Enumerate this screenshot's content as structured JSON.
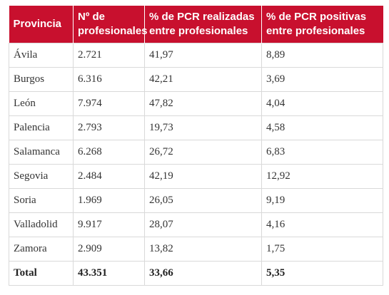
{
  "table": {
    "headers": [
      {
        "line1": "Provincia",
        "line2": ""
      },
      {
        "line1": "Nº de",
        "line2": "profesionales"
      },
      {
        "line1": "% de PCR realizadas",
        "line2": "entre profesionales"
      },
      {
        "line1": "% de PCR positivas",
        "line2": "entre profesionales"
      }
    ],
    "rows": [
      [
        "Ávila",
        "2.721",
        "41,97",
        "8,89"
      ],
      [
        "Burgos",
        "6.316",
        "42,21",
        "3,69"
      ],
      [
        "León",
        "7.974",
        "47,82",
        "4,04"
      ],
      [
        "Palencia",
        "2.793",
        "19,73",
        "4,58"
      ],
      [
        "Salamanca",
        "6.268",
        "26,72",
        "6,83"
      ],
      [
        "Segovia",
        "2.484",
        "42,19",
        "12,92"
      ],
      [
        "Soria",
        "1.969",
        "26,05",
        "9,19"
      ],
      [
        "Valladolid",
        "9.917",
        "28,07",
        "4,16"
      ],
      [
        "Zamora",
        "2.909",
        "13,82",
        "1,75"
      ]
    ],
    "total": [
      "Total",
      "43.351",
      "33,66",
      "5,35"
    ]
  },
  "colors": {
    "header_bg": "#c8102e",
    "header_text": "#ffffff",
    "border": "#d9d9d9"
  }
}
